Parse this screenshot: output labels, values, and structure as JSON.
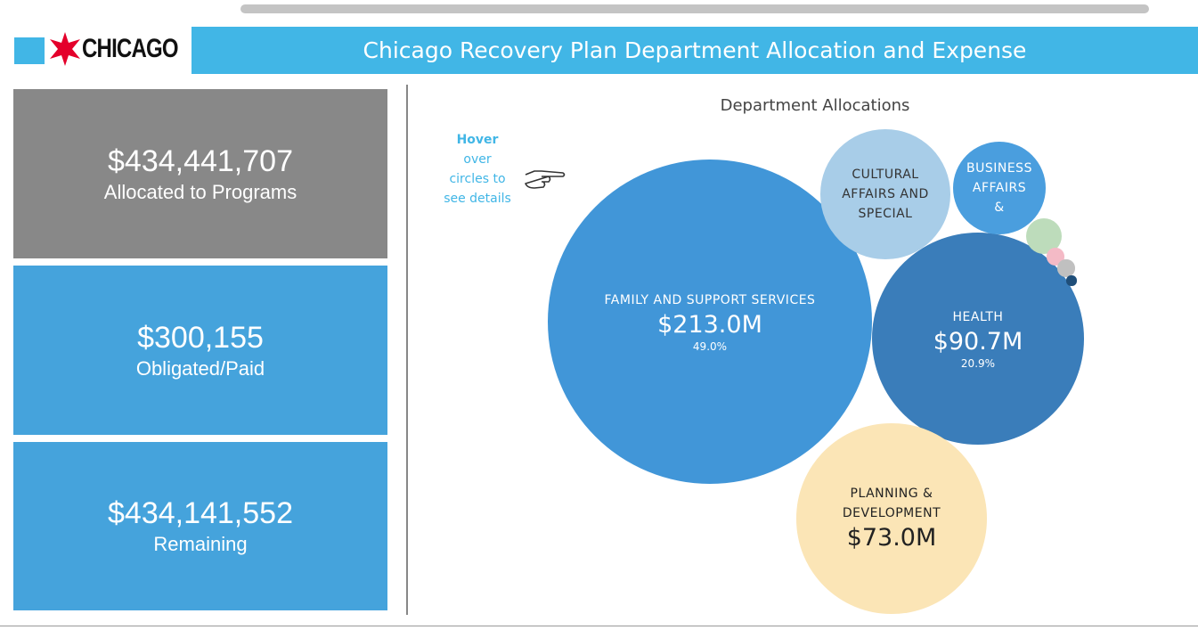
{
  "header": {
    "logo": "CHICAGO",
    "title": "Chicago Recovery Plan Department Allocation and Expense"
  },
  "summary": [
    {
      "value": "$434,441,707",
      "label": "Allocated to Programs"
    },
    {
      "value": "$300,155",
      "label": "Obligated/Paid"
    },
    {
      "value": "$434,141,552",
      "label": "Remaining"
    }
  ],
  "hover_note": {
    "title": "Hover",
    "text": "over circles to see details"
  },
  "chart_data": {
    "type": "bubble",
    "title": "Department Allocations",
    "categories": [
      "FAMILY AND SUPPORT SERVICES",
      "HEALTH",
      "PLANNING & DEVELOPMENT",
      "CULTURAL AFFAIRS AND SPECIAL",
      "BUSINESS AFFAIRS &",
      null,
      null,
      null,
      null
    ],
    "values": [
      213.0,
      90.7,
      73.0,
      34,
      17.4,
      2.6,
      0.6,
      0.6,
      0.2
    ],
    "value_labels": [
      "$213.0M",
      "$90.7M",
      "$73.0M",
      null,
      null,
      null,
      null,
      null,
      null
    ],
    "percentages": [
      49.0,
      20.9,
      null,
      null,
      null,
      null,
      null,
      null,
      null
    ],
    "percentage_labels": [
      "49.0%",
      "20.9%",
      null,
      null,
      null,
      null,
      null,
      null,
      null
    ],
    "colors": [
      "#4196d8",
      "#3a7dba",
      "#fbe5b6",
      "#a8cde8",
      "#4a9ede",
      "#bddcbb",
      "#f4bac6",
      "#c0c0c0",
      "#1f4e79"
    ]
  }
}
